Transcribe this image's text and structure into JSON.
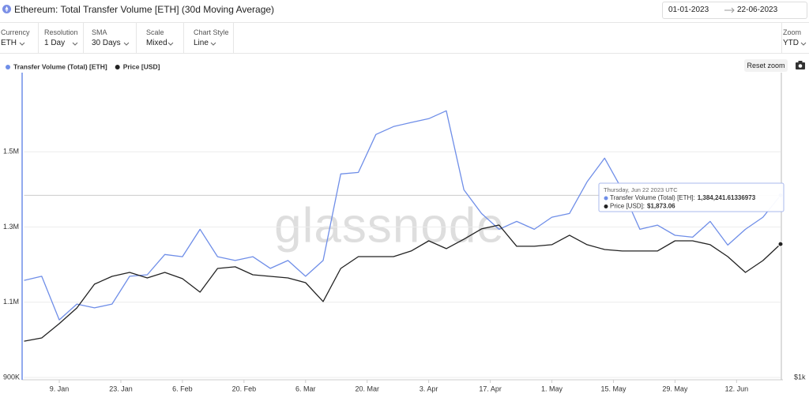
{
  "header": {
    "title": "Ethereum: Total Transfer Volume [ETH] (30d Moving Average)",
    "date_from": "01-01-2023",
    "date_to": "22-06-2023"
  },
  "controls": [
    {
      "label": "Currency",
      "value": "ETH"
    },
    {
      "label": "Resolution",
      "value": "1 Day"
    },
    {
      "label": "SMA",
      "value": "30 Days"
    },
    {
      "label": "Scale",
      "value": "Mixed"
    },
    {
      "label": "Chart Style",
      "value": "Line"
    }
  ],
  "zoom": {
    "label": "Zoom",
    "value": "YTD"
  },
  "reset_zoom": "Reset zoom",
  "chart_data": {
    "type": "line",
    "watermark": "glassnode",
    "legend": "top-left",
    "x": [
      "2023-01-01",
      "2023-01-05",
      "2023-01-09",
      "2023-01-13",
      "2023-01-17",
      "2023-01-21",
      "2023-01-25",
      "2023-01-29",
      "2023-02-02",
      "2023-02-06",
      "2023-02-10",
      "2023-02-14",
      "2023-02-18",
      "2023-02-22",
      "2023-02-26",
      "2023-03-02",
      "2023-03-06",
      "2023-03-10",
      "2023-03-14",
      "2023-03-18",
      "2023-03-22",
      "2023-03-26",
      "2023-03-30",
      "2023-04-03",
      "2023-04-07",
      "2023-04-11",
      "2023-04-15",
      "2023-04-19",
      "2023-04-23",
      "2023-04-27",
      "2023-05-01",
      "2023-05-05",
      "2023-05-09",
      "2023-05-13",
      "2023-05-17",
      "2023-05-21",
      "2023-05-25",
      "2023-05-29",
      "2023-06-02",
      "2023-06-06",
      "2023-06-10",
      "2023-06-14",
      "2023-06-18",
      "2023-06-22"
    ],
    "series": [
      {
        "name": "Transfer Volume (Total) [ETH]",
        "color": "#6f8ee8",
        "values": [
          1158000,
          1169000,
          1053000,
          1095000,
          1085000,
          1095000,
          1169000,
          1173000,
          1227000,
          1221000,
          1294000,
          1221000,
          1211000,
          1221000,
          1190000,
          1211000,
          1169000,
          1211000,
          1441000,
          1445000,
          1546000,
          1567000,
          1578000,
          1588000,
          1609000,
          1399000,
          1336000,
          1294000,
          1315000,
          1294000,
          1326000,
          1336000,
          1420000,
          1483000,
          1399000,
          1294000,
          1305000,
          1278000,
          1273000,
          1315000,
          1252000,
          1294000,
          1326000,
          1384241.61336973
        ]
      },
      {
        "name": "Price [USD]",
        "color": "#222222",
        "axis": "y2",
        "values": [
          1186,
          1204,
          1288,
          1387,
          1551,
          1609,
          1639,
          1597,
          1639,
          1592,
          1494,
          1670,
          1683,
          1621,
          1609,
          1597,
          1562,
          1429,
          1670,
          1766,
          1766,
          1766,
          1813,
          1902,
          1833,
          1917,
          2012,
          2049,
          1854,
          1854,
          1868,
          1953,
          1868,
          1826,
          1813,
          1813,
          1813,
          1902,
          1902,
          1868,
          1766,
          1639,
          1733,
          1873.06
        ]
      }
    ],
    "xlim": [
      "2023-01-01",
      "2023-06-22"
    ],
    "xticks": [
      {
        "value": "2023-01-09",
        "label": "9. Jan"
      },
      {
        "value": "2023-01-23",
        "label": "23. Jan"
      },
      {
        "value": "2023-02-06",
        "label": "6. Feb"
      },
      {
        "value": "2023-02-20",
        "label": "20. Feb"
      },
      {
        "value": "2023-03-06",
        "label": "6. Mar"
      },
      {
        "value": "2023-03-20",
        "label": "20. Mar"
      },
      {
        "value": "2023-04-03",
        "label": "3. Apr"
      },
      {
        "value": "2023-04-17",
        "label": "17. Apr"
      },
      {
        "value": "2023-05-01",
        "label": "1. May"
      },
      {
        "value": "2023-05-15",
        "label": "15. May"
      },
      {
        "value": "2023-05-29",
        "label": "29. May"
      },
      {
        "value": "2023-06-12",
        "label": "12. Jun"
      }
    ],
    "ylim": [
      900000,
      1700000
    ],
    "yticks": [
      {
        "value": 900000,
        "label": "900K"
      },
      {
        "value": 1100000,
        "label": "1.1M"
      },
      {
        "value": 1300000,
        "label": "1.3M"
      },
      {
        "value": 1500000,
        "label": "1.5M"
      }
    ],
    "y2lim": [
      1000,
      4120
    ],
    "y2ticks": [
      {
        "value": 1000,
        "label": "$1k"
      }
    ],
    "log_y2": true,
    "grid": true,
    "tooltip": {
      "title": "Thursday, Jun 22 2023 UTC",
      "items": [
        {
          "label": "Transfer Volume (Total) [ETH]:",
          "value": "1,384,241.61336973"
        },
        {
          "label": "Price [USD]:",
          "value": "$1,873.06"
        }
      ]
    }
  }
}
